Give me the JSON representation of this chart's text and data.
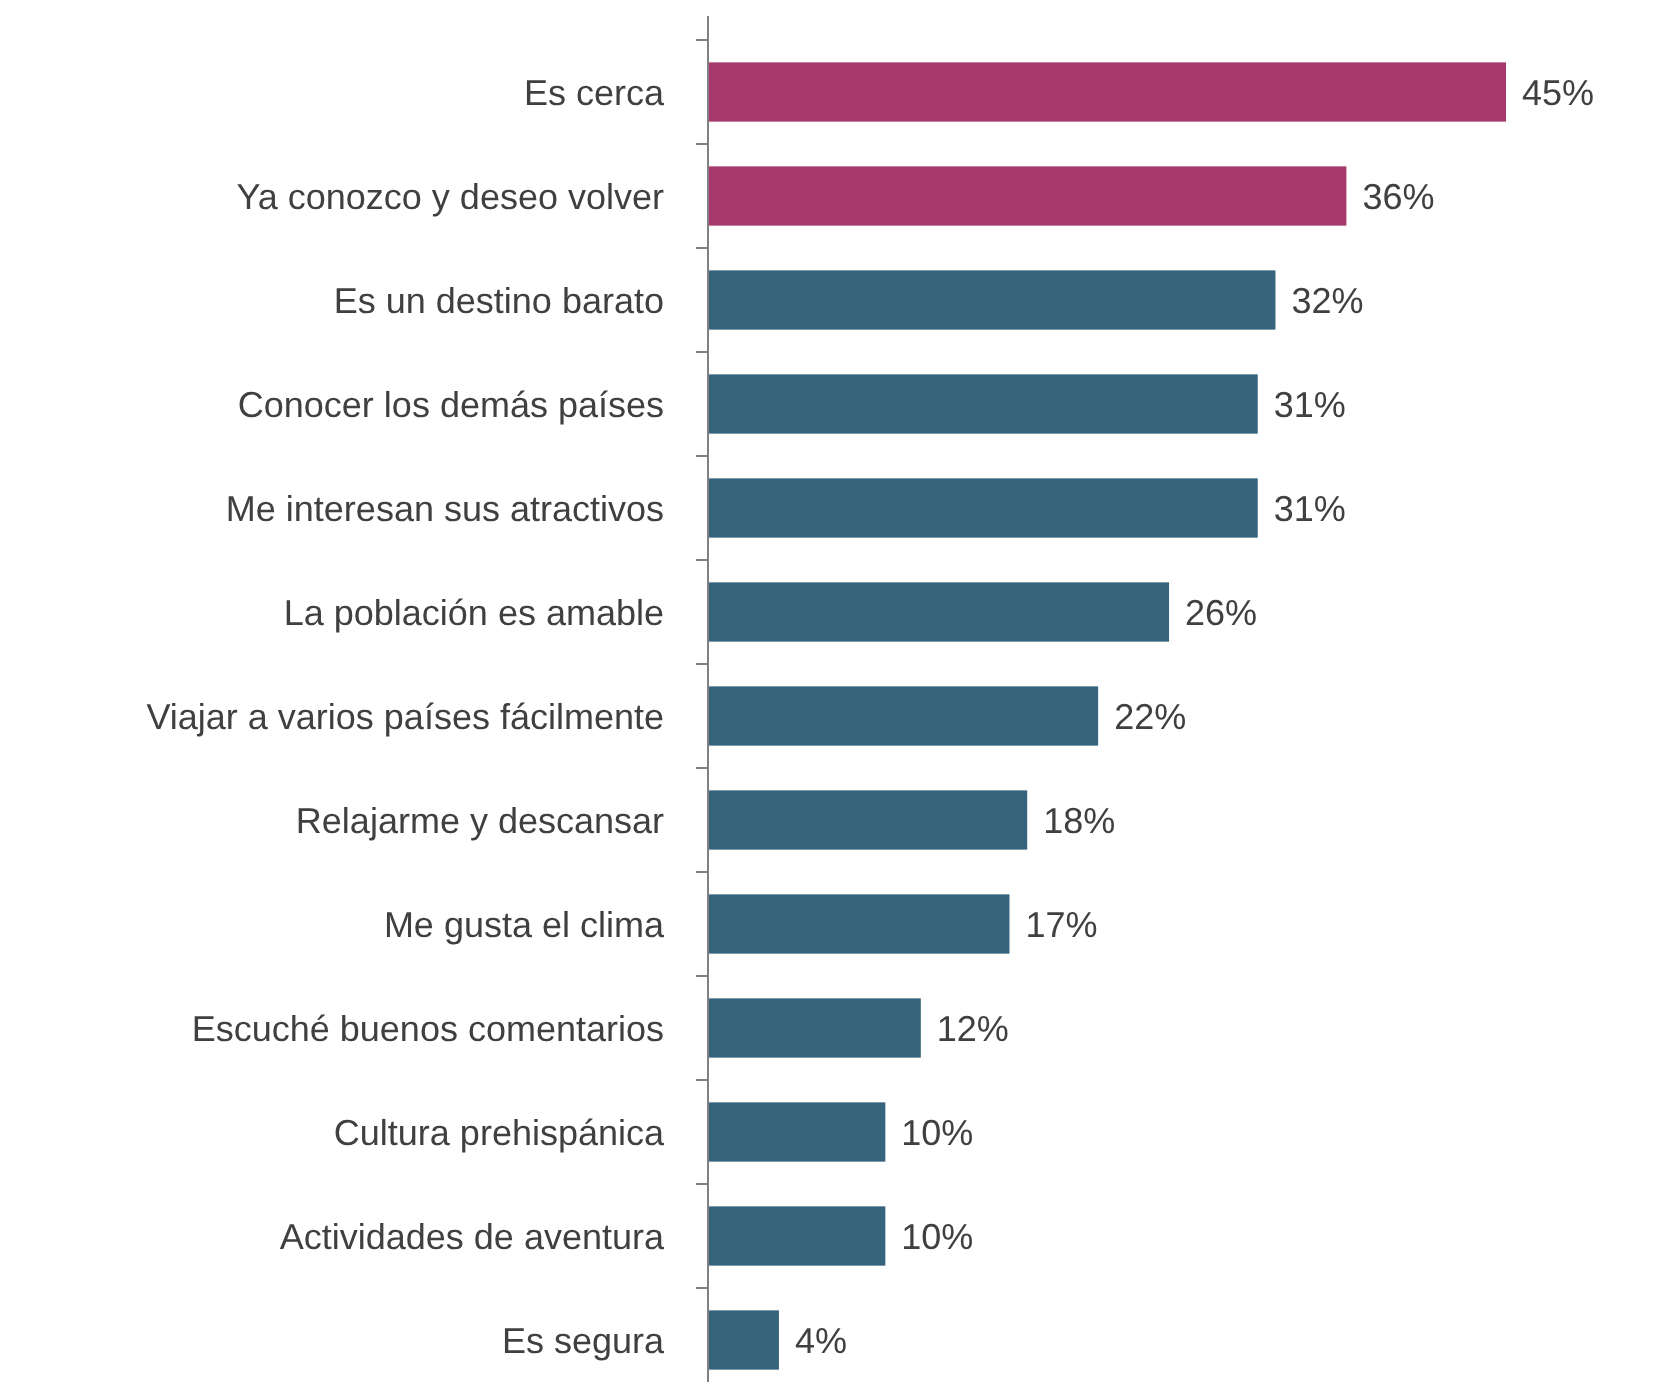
{
  "chart_data": {
    "type": "bar",
    "orientation": "horizontal",
    "categories": [
      "Es cerca",
      "Ya conozco y deseo volver",
      "Es un destino barato",
      "Conocer los demás países",
      "Me interesan sus atractivos",
      "La población es amable",
      "Viajar a varios países fácilmente",
      "Relajarme y descansar",
      "Me gusta el clima",
      "Escuché buenos comentarios",
      "Cultura prehispánica",
      "Actividades de aventura",
      "Es segura"
    ],
    "values": [
      45,
      36,
      32,
      31,
      31,
      26,
      22,
      18,
      17,
      12,
      10,
      10,
      4
    ],
    "value_labels": [
      "45%",
      "36%",
      "32%",
      "31%",
      "31%",
      "26%",
      "22%",
      "18%",
      "17%",
      "12%",
      "10%",
      "10%",
      "4%"
    ],
    "colors": [
      "#a5396c",
      "#a5396c",
      "#35647c",
      "#35647c",
      "#35647c",
      "#35647c",
      "#35647c",
      "#35647c",
      "#35647c",
      "#35647c",
      "#35647c",
      "#35647c",
      "#35647c"
    ],
    "xlim": [
      0,
      45
    ],
    "tick_labels": "y"
  }
}
